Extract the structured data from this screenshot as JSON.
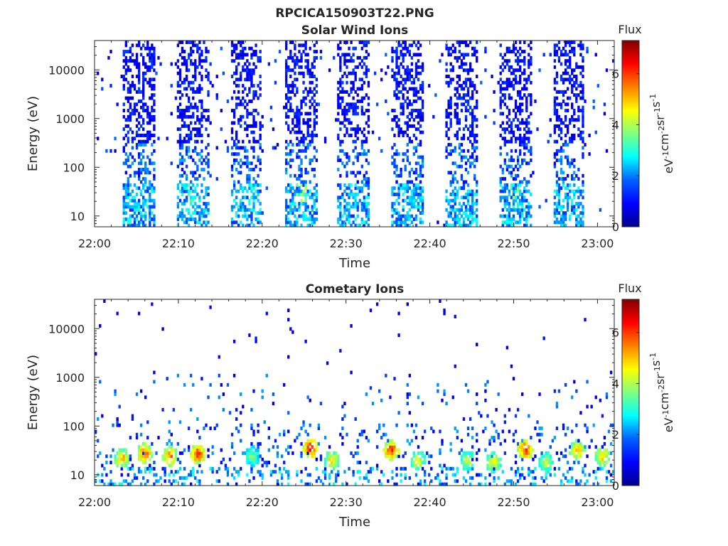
{
  "figure": {
    "title": "RPCICA150903T22.PNG"
  },
  "colorbar_units_parts": [
    "eV",
    "-1",
    "cm",
    "-2",
    "sr",
    "-1",
    "s",
    "-1"
  ],
  "colorbar_label": "Flux",
  "colormap": [
    "#00008f",
    "#0000ff",
    "#0080ff",
    "#00ffff",
    "#80ff80",
    "#ffff00",
    "#ff8000",
    "#ff0000",
    "#800000"
  ],
  "chart_data": [
    {
      "type": "heatmap",
      "title": "Solar Wind Ions",
      "xlabel": "Time",
      "ylabel": "Energy (eV)",
      "x_ticks": [
        "22:00",
        "22:10",
        "22:20",
        "22:30",
        "22:40",
        "22:50",
        "23:00"
      ],
      "x_range_minutes": [
        0,
        62
      ],
      "y_scale": "log",
      "y_ticks": [
        10,
        100,
        1000,
        10000
      ],
      "y_tick_labels": [
        "10",
        "100",
        "1000",
        "10000"
      ],
      "y_range": [
        6,
        40000
      ],
      "colorbar_range": [
        0,
        7.3
      ],
      "colorbar_ticks": [
        0,
        2,
        4,
        6
      ],
      "colorbar_label": "Flux",
      "grid": false,
      "burst_centers_minutes": [
        5.3,
        11.8,
        18.1,
        24.6,
        30.8,
        37.4,
        43.8,
        50.3,
        56.6
      ],
      "burst_peak_flux": [
        3.0,
        3.6,
        3.2,
        4.4,
        3.0,
        3.0,
        3.0,
        4.2,
        3.0
      ]
    },
    {
      "type": "heatmap",
      "title": "Cometary Ions",
      "xlabel": "Time",
      "ylabel": "Energy (eV)",
      "x_ticks": [
        "22:00",
        "22:10",
        "22:20",
        "22:30",
        "22:40",
        "22:50",
        "23:00"
      ],
      "x_range_minutes": [
        0,
        62
      ],
      "y_scale": "log",
      "y_ticks": [
        10,
        100,
        1000,
        10000
      ],
      "y_tick_labels": [
        "10",
        "100",
        "1000",
        "10000"
      ],
      "y_range": [
        6,
        40000
      ],
      "colorbar_range": [
        0,
        7.3
      ],
      "colorbar_ticks": [
        0,
        2,
        4,
        6
      ],
      "colorbar_label": "Flux",
      "grid": false,
      "hot_spots": [
        {
          "t": 3.3,
          "e": 22,
          "flux": 5.5
        },
        {
          "t": 6.0,
          "e": 28,
          "flux": 6.2
        },
        {
          "t": 9.0,
          "e": 24,
          "flux": 6.0
        },
        {
          "t": 12.3,
          "e": 27,
          "flux": 6.5
        },
        {
          "t": 18.8,
          "e": 24,
          "flux": 4.0
        },
        {
          "t": 25.8,
          "e": 35,
          "flux": 6.8
        },
        {
          "t": 28.3,
          "e": 20,
          "flux": 5.2
        },
        {
          "t": 35.4,
          "e": 32,
          "flux": 6.6
        },
        {
          "t": 38.6,
          "e": 20,
          "flux": 4.8
        },
        {
          "t": 44.5,
          "e": 20,
          "flux": 4.6
        },
        {
          "t": 47.6,
          "e": 18,
          "flux": 5.0
        },
        {
          "t": 51.4,
          "e": 33,
          "flux": 6.6
        },
        {
          "t": 53.9,
          "e": 18,
          "flux": 4.6
        },
        {
          "t": 57.6,
          "e": 32,
          "flux": 5.6
        },
        {
          "t": 60.6,
          "e": 24,
          "flux": 5.4
        }
      ]
    }
  ]
}
